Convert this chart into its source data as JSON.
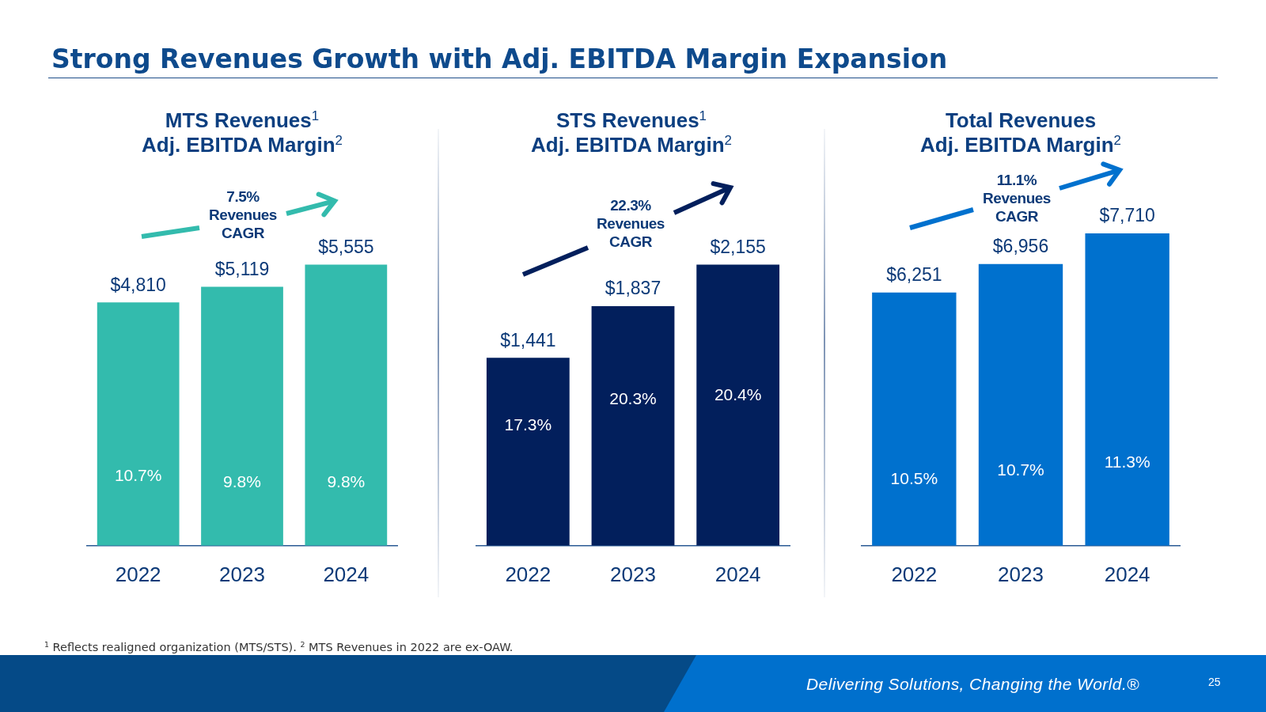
{
  "chart_data": [
    {
      "type": "bar",
      "title": "MTS Revenues$^{1}$",
      "subtitle": "Adj. EBITDA Margin$^{2}$",
      "categories": [
        "2022",
        "2023",
        "2024"
      ],
      "values": [
        4810,
        5119,
        5555
      ],
      "color": "#33bbad",
      "value_labels": [
        "$4,810",
        "$5,119",
        "$5,555"
      ],
      "tick_labels": "x",
      "annotations": [
        "Strong Revenues Growth with Adj. EBITDA Margin Expansion",
        "7.5% Revenues CAGR",
        "10.7%",
        "9.8%",
        "9.8%"
      ]
    },
    {
      "type": "bar",
      "title": "STS Revenues$^{1}$",
      "subtitle": "Adj. EBITDA Margin$^{2}$",
      "categories": [
        "2022",
        "2023",
        "2024"
      ],
      "values": [
        1441,
        1837,
        2155
      ],
      "color": "#021f5c",
      "value_labels": [
        "$1,441",
        "$1,837",
        "$2,155"
      ],
      "tick_labels": "x",
      "annotations": [
        "22.3% Revenues CAGR",
        "17.3%",
        "20.3%",
        "20.4%"
      ]
    },
    {
      "type": "bar",
      "title": "Total Revenues",
      "subtitle": "Adj. EBITDA Margin$^{2}$",
      "categories": [
        "2022",
        "2023",
        "2024"
      ],
      "values": [
        6251,
        6956,
        7710
      ],
      "color": "#0071ce",
      "value_labels": [
        "$6,251",
        "$6,956",
        "$7,710"
      ],
      "tick_labels": "x",
      "annotations": [
        "11.1% Revenues CAGR",
        "10.5%",
        "10.7%",
        "11.3%",
        "$^{1}$ Reflects realigned organization (MTS/STS). $^{2}$ MTS Revenues in 2022 are ex-OAW.",
        "Delivering Solutions, Changing the World.®",
        "25"
      ]
    }
  ]
}
